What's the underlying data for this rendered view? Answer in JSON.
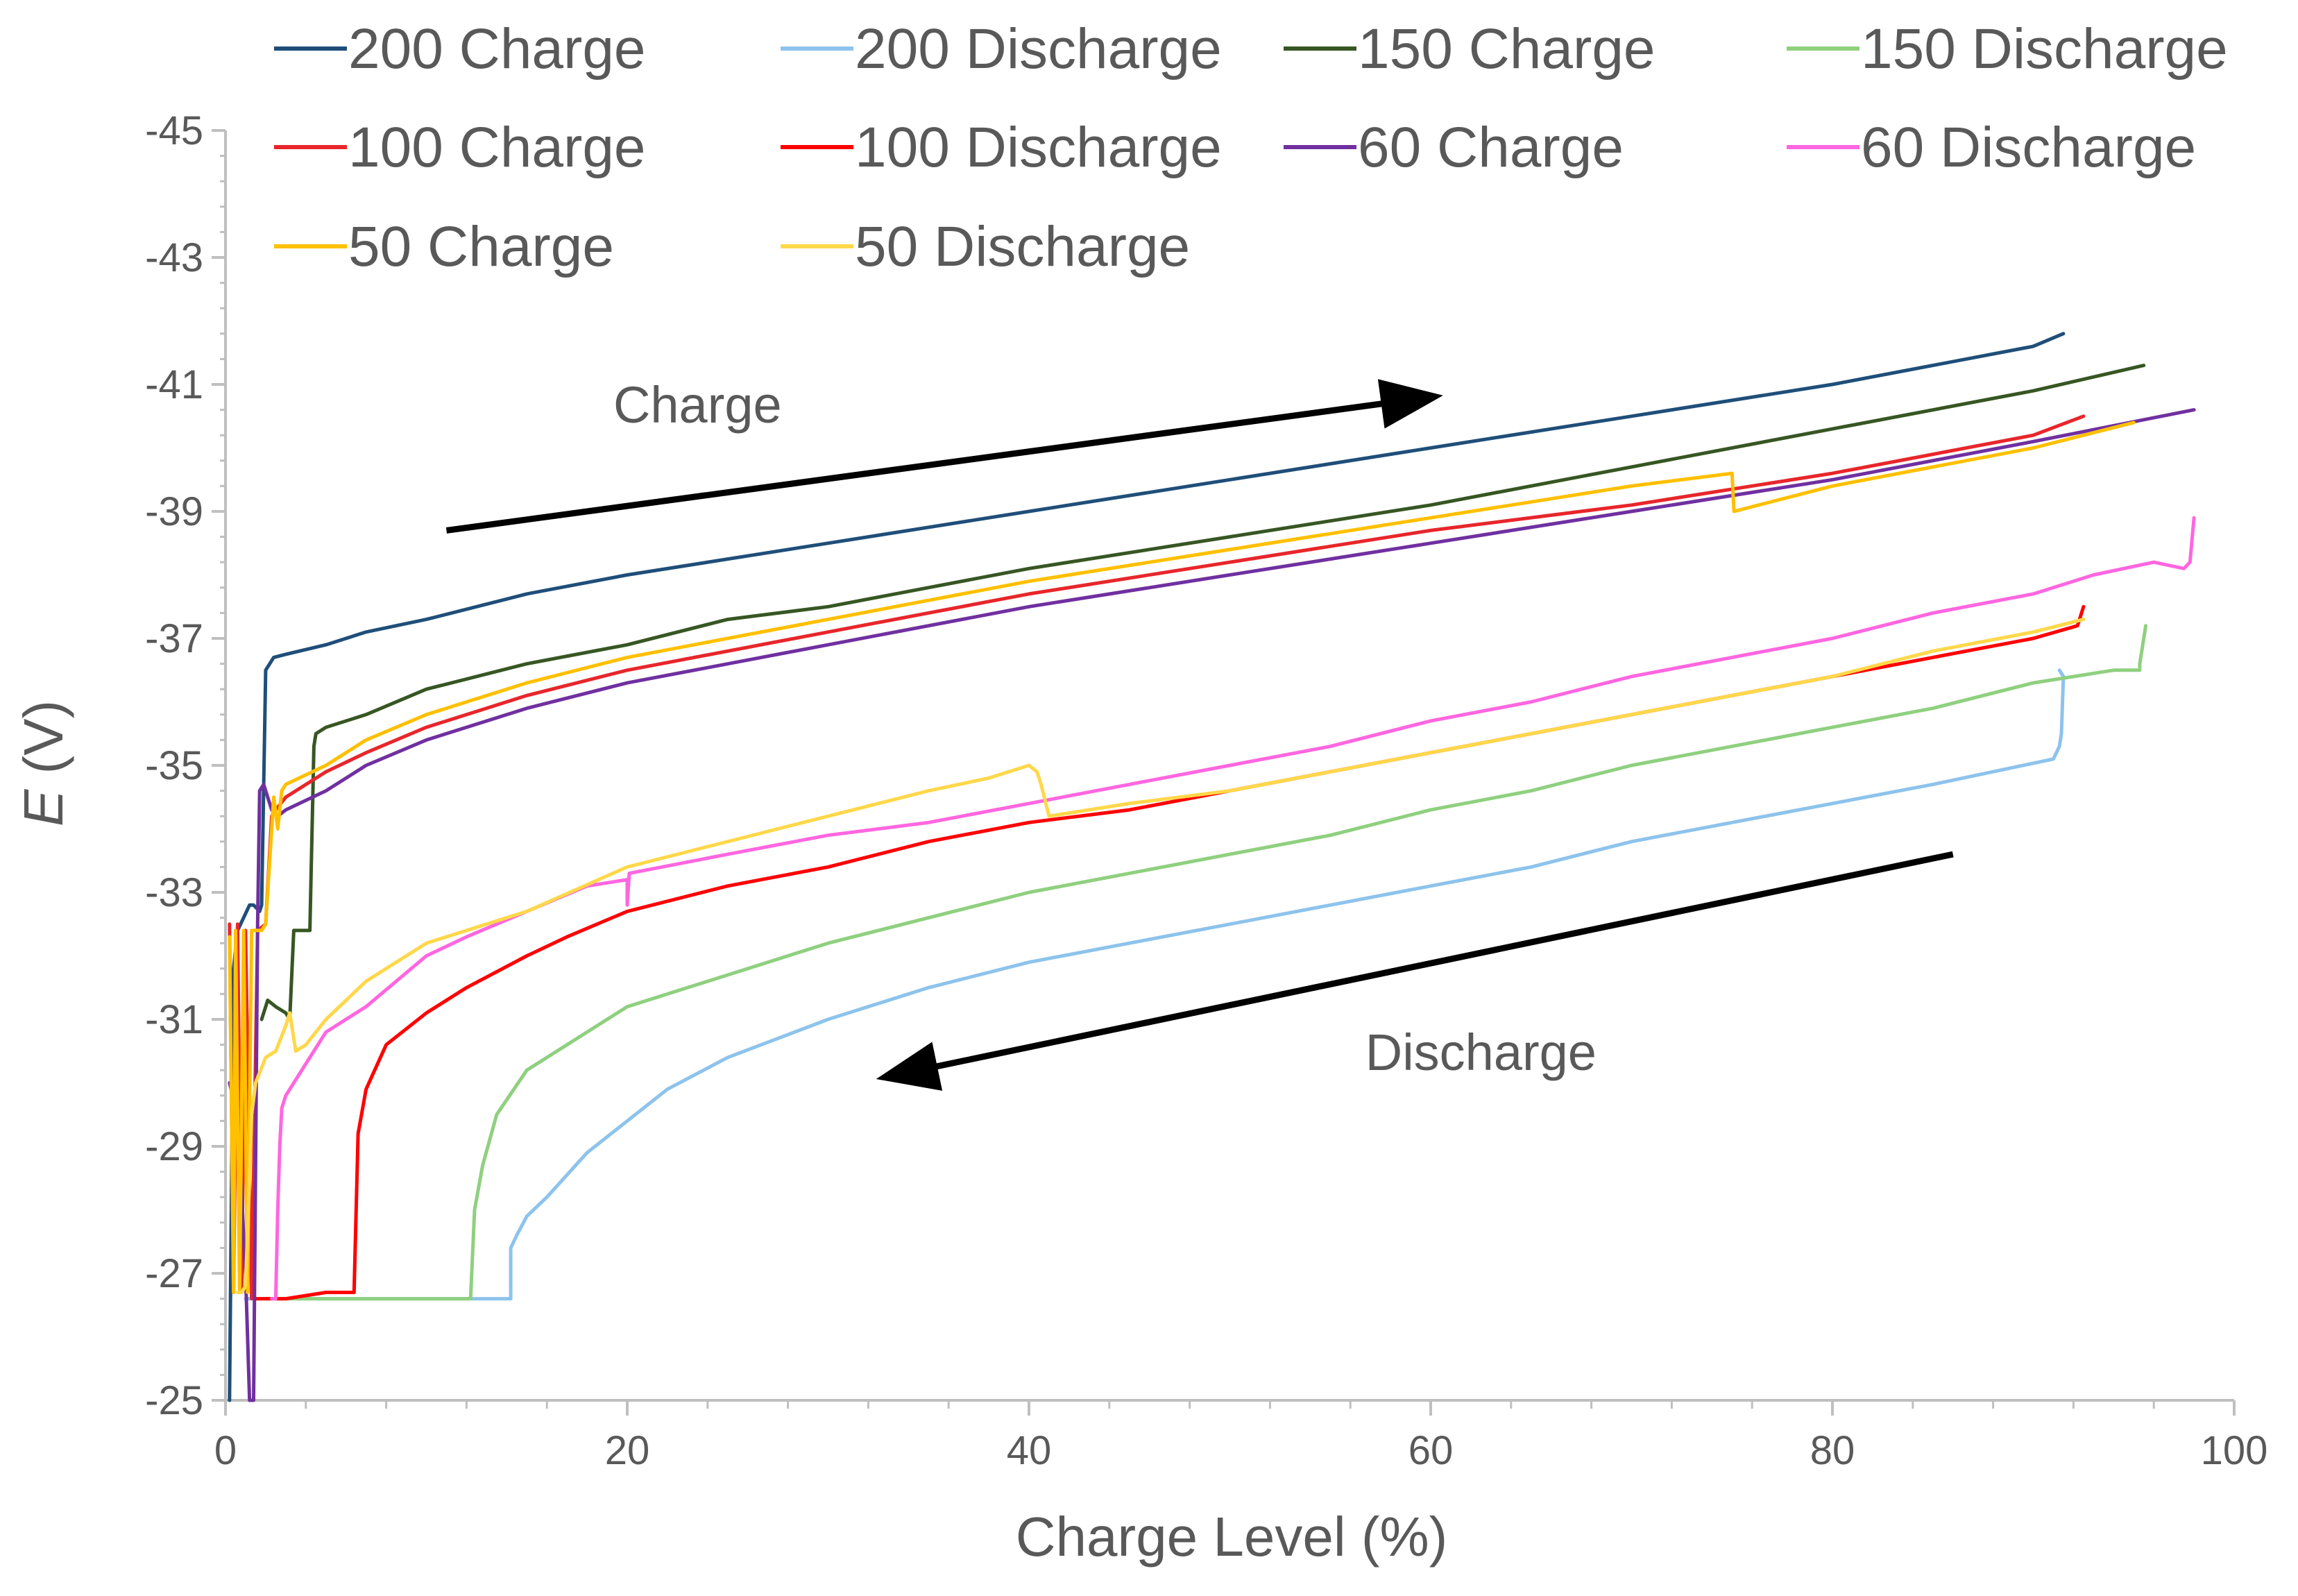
{
  "chart_data": {
    "type": "line",
    "title": "",
    "xlabel": "Charge Level (%)",
    "ylabel_symbol": "E",
    "ylabel_unit": " (V)",
    "xlim": [
      0,
      100
    ],
    "ylim": [
      -25,
      -45
    ],
    "y_inverted": true,
    "x_ticks": [
      0,
      20,
      40,
      60,
      80,
      100
    ],
    "y_ticks": [
      -25,
      -27,
      -29,
      -31,
      -33,
      -35,
      -37,
      -39,
      -41,
      -43,
      -45
    ],
    "grid": false,
    "legend_position": "top",
    "annotations": [
      {
        "text": "Charge",
        "x": 23.5,
        "y": -40.4
      },
      {
        "text": "Discharge",
        "x": 62.5,
        "y": -30.2
      }
    ],
    "arrows": [
      {
        "name": "charge-arrow",
        "from": [
          11,
          -38.7
        ],
        "to": [
          60,
          -40.8
        ]
      },
      {
        "name": "discharge-arrow",
        "from": [
          86,
          -33.6
        ],
        "to": [
          33,
          -30.1
        ]
      }
    ],
    "series": [
      {
        "name": "200 Charge",
        "color": "#1F4E79",
        "x": [
          0.2,
          0.4,
          0.6,
          0.9,
          1.2,
          1.4,
          1.7,
          1.8,
          2.0,
          2.2,
          2.4,
          3,
          5,
          7,
          10,
          15,
          20,
          30,
          40,
          50,
          60,
          70,
          80,
          90,
          91.5
        ],
        "y": [
          -25.0,
          -31.8,
          -32.4,
          -32.6,
          -32.8,
          -32.8,
          -32.7,
          -32.8,
          -36.5,
          -36.6,
          -36.7,
          -36.75,
          -36.9,
          -37.1,
          -37.3,
          -37.7,
          -38.0,
          -38.5,
          -39.0,
          -39.5,
          -40.0,
          -40.5,
          -41.0,
          -41.6,
          -41.8
        ]
      },
      {
        "name": "200 Discharge",
        "color": "#8DC3EC",
        "x": [
          91.3,
          91.5,
          91.4,
          91.3,
          91.0,
          85,
          80,
          75,
          70,
          65,
          60,
          55,
          50,
          45,
          40,
          35,
          30,
          25,
          22,
          20,
          18,
          16,
          15,
          14.5,
          14.2,
          14.2,
          13,
          10,
          5,
          1
        ],
        "y": [
          -36.5,
          -36.4,
          -35.5,
          -35.3,
          -35.1,
          -34.7,
          -34.4,
          -34.1,
          -33.8,
          -33.4,
          -33.1,
          -32.8,
          -32.5,
          -32.2,
          -31.9,
          -31.5,
          -31.0,
          -30.4,
          -29.9,
          -29.4,
          -28.9,
          -28.2,
          -27.9,
          -27.6,
          -27.4,
          -26.6,
          -26.6,
          -26.6,
          -26.6,
          -26.6
        ]
      },
      {
        "name": "150 Charge",
        "color": "#375623",
        "x": [
          1.8,
          2.1,
          2.5,
          3.0,
          3.2,
          3.4,
          3.6,
          4.2,
          4.4,
          4.5,
          5,
          7,
          10,
          15,
          20,
          25,
          30,
          40,
          50,
          60,
          70,
          80,
          90,
          95.5
        ],
        "y": [
          -31.0,
          -31.3,
          -31.2,
          -31.1,
          -31.0,
          -32.4,
          -32.4,
          -32.4,
          -35.3,
          -35.5,
          -35.6,
          -35.8,
          -36.2,
          -36.6,
          -36.9,
          -37.3,
          -37.5,
          -38.1,
          -38.6,
          -39.1,
          -39.7,
          -40.3,
          -40.9,
          -41.3
        ]
      },
      {
        "name": "150 Discharge",
        "color": "#8FD07F",
        "x": [
          95.6,
          95.3,
          95.3,
          94,
          90,
          85,
          80,
          75,
          70,
          65,
          60,
          55,
          50,
          45,
          40,
          35,
          30,
          25,
          20,
          17,
          15,
          13.5,
          12.8,
          12.4,
          12.2,
          11,
          8,
          4,
          2
        ],
        "y": [
          -37.2,
          -36.6,
          -36.5,
          -36.5,
          -36.3,
          -35.9,
          -35.6,
          -35.3,
          -35.0,
          -34.6,
          -34.3,
          -33.9,
          -33.6,
          -33.3,
          -33.0,
          -32.6,
          -32.2,
          -31.7,
          -31.2,
          -30.6,
          -30.2,
          -29.5,
          -28.7,
          -28.0,
          -26.6,
          -26.6,
          -26.6,
          -26.6,
          -26.6
        ]
      },
      {
        "name": "100 Charge",
        "color": "#E8262B",
        "x": [
          0.2,
          0.4,
          0.6,
          0.8,
          1.0,
          1.3,
          1.6,
          2.0,
          2.3,
          2.5,
          3,
          5,
          7,
          10,
          15,
          20,
          30,
          40,
          50,
          60,
          70,
          80,
          90,
          92.5
        ],
        "y": [
          -32.5,
          -26.7,
          -32.5,
          -26.7,
          -32.4,
          -26.6,
          -32.4,
          -32.5,
          -34.2,
          -34.3,
          -34.5,
          -34.9,
          -35.2,
          -35.6,
          -36.1,
          -36.5,
          -37.1,
          -37.7,
          -38.2,
          -38.7,
          -39.1,
          -39.6,
          -40.2,
          -40.5
        ]
      },
      {
        "name": "100 Discharge",
        "color": "#FF0000",
        "x": [
          92.5,
          92.3,
          92.2,
          90,
          85,
          80,
          75,
          70,
          65,
          60,
          55,
          50,
          45,
          40,
          35,
          30,
          25,
          20,
          17,
          15,
          12,
          10,
          8,
          7,
          6.6,
          6.4,
          5,
          3,
          1.5
        ],
        "y": [
          -37.5,
          -37.3,
          -37.2,
          -37.0,
          -36.7,
          -36.4,
          -36.1,
          -35.8,
          -35.5,
          -35.2,
          -34.9,
          -34.6,
          -34.3,
          -34.1,
          -33.8,
          -33.4,
          -33.1,
          -32.7,
          -32.3,
          -32.0,
          -31.5,
          -31.1,
          -30.6,
          -29.9,
          -29.2,
          -26.7,
          -26.7,
          -26.6,
          -26.6
        ]
      },
      {
        "name": "60 Charge",
        "color": "#7030A0",
        "x": [
          0.2,
          0.6,
          1.0,
          1.2,
          1.4,
          1.6,
          1.7,
          1.9,
          2.1,
          2.3,
          2.6,
          3,
          5,
          7,
          10,
          15,
          20,
          30,
          40,
          50,
          60,
          70,
          80,
          90,
          98
        ],
        "y": [
          -30.0,
          -29.5,
          -27.0,
          -25.0,
          -25.0,
          -32.5,
          -34.6,
          -34.7,
          -34.5,
          -34.3,
          -34.2,
          -34.3,
          -34.6,
          -35.0,
          -35.4,
          -35.9,
          -36.3,
          -36.9,
          -37.5,
          -38.0,
          -38.5,
          -39.0,
          -39.5,
          -40.1,
          -40.6
        ]
      },
      {
        "name": "60 Discharge",
        "color": "#FF66E0",
        "x": [
          98,
          97.8,
          97.5,
          96,
          93,
          90,
          85,
          80,
          75,
          70,
          65,
          60,
          55,
          50,
          45,
          40,
          35,
          30,
          25,
          20.1,
          20.0,
          20,
          18,
          15,
          12,
          10,
          7,
          5,
          4,
          3,
          2.8,
          2.7,
          2.6,
          2.5,
          2.3
        ],
        "y": [
          -38.9,
          -38.2,
          -38.1,
          -38.2,
          -38.0,
          -37.7,
          -37.4,
          -37.0,
          -36.7,
          -36.4,
          -36.0,
          -35.7,
          -35.3,
          -35.0,
          -34.7,
          -34.4,
          -34.1,
          -33.9,
          -33.6,
          -33.3,
          -32.8,
          -33.2,
          -33.1,
          -32.7,
          -32.3,
          -32.0,
          -31.2,
          -30.8,
          -30.3,
          -29.8,
          -29.6,
          -29.0,
          -28.0,
          -26.6,
          -26.6
        ]
      },
      {
        "name": "50 Charge",
        "color": "#FFC000",
        "x": [
          0.2,
          0.4,
          0.5,
          0.7,
          0.9,
          1.1,
          1.3,
          1.5,
          1.8,
          2.0,
          2.4,
          2.6,
          2.8,
          3,
          5,
          7,
          10,
          15,
          20,
          30,
          40,
          50,
          60,
          70,
          75,
          75.1,
          80,
          90,
          95
        ],
        "y": [
          -32.3,
          -26.7,
          -32.4,
          -26.7,
          -32.4,
          -26.7,
          -32.4,
          -32.4,
          -32.4,
          -32.5,
          -34.5,
          -34.0,
          -34.6,
          -34.7,
          -35.0,
          -35.4,
          -35.8,
          -36.3,
          -36.7,
          -37.3,
          -37.9,
          -38.4,
          -38.9,
          -39.4,
          -39.6,
          -39.0,
          -39.4,
          -40.0,
          -40.4
        ]
      },
      {
        "name": "50 Discharge",
        "color": "#FFD84A",
        "x": [
          92.5,
          90,
          85,
          80,
          75,
          70,
          65,
          60,
          55,
          50,
          45,
          41,
          40.6,
          40.4,
          40,
          38,
          35,
          30,
          25,
          20,
          15,
          10,
          7,
          5,
          4,
          3.5,
          3.2,
          3.0,
          2.5,
          2,
          1.5,
          1.3,
          1.2,
          1.0,
          0.8,
          0.6
        ],
        "y": [
          -37.3,
          -37.1,
          -36.8,
          -36.4,
          -36.1,
          -35.8,
          -35.5,
          -35.2,
          -34.9,
          -34.6,
          -34.4,
          -34.2,
          -34.7,
          -34.9,
          -35.0,
          -34.8,
          -34.6,
          -34.2,
          -33.8,
          -33.4,
          -32.7,
          -32.2,
          -31.6,
          -31.0,
          -30.6,
          -30.5,
          -31.1,
          -30.9,
          -30.5,
          -30.4,
          -30.0,
          -29.5,
          -28.5,
          -26.8,
          -26.7,
          -26.7
        ]
      }
    ]
  }
}
